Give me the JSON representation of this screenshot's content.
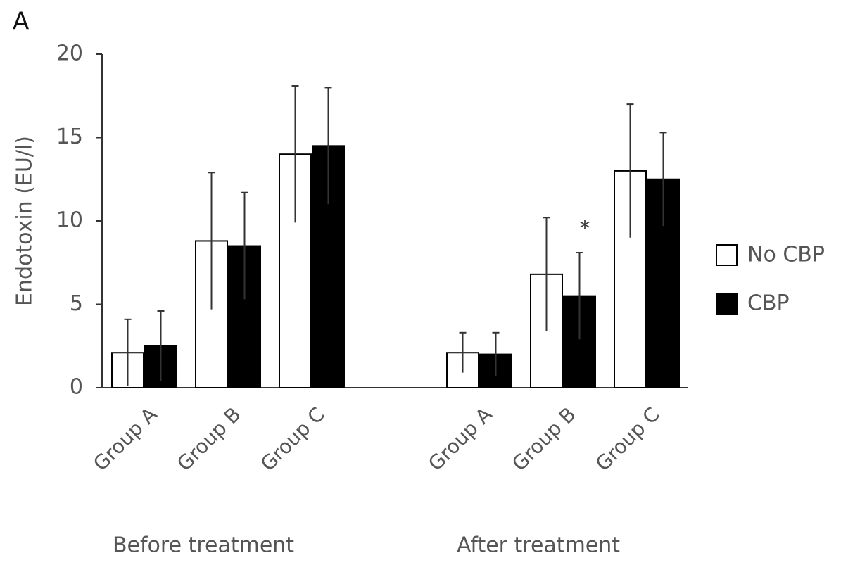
{
  "chart_data": {
    "type": "bar",
    "panel_label": "A",
    "ylabel": "Endotoxin (EU/l)",
    "categories": [
      "Group A",
      "Group B",
      "Group C",
      "Group A",
      "Group B",
      "Group C"
    ],
    "group_labels": [
      "Before treatment",
      "After treatment"
    ],
    "series": [
      {
        "name": "No CBP",
        "color": "#ffffff",
        "values": [
          2.1,
          8.8,
          14.0,
          2.1,
          6.8,
          13.0
        ],
        "errors": [
          2.0,
          4.1,
          4.1,
          1.2,
          3.4,
          4.0
        ]
      },
      {
        "name": "CBP",
        "color": "#000000",
        "values": [
          2.5,
          8.5,
          14.5,
          2.0,
          5.5,
          12.5
        ],
        "errors": [
          2.1,
          3.2,
          3.5,
          1.3,
          2.6,
          2.8
        ]
      }
    ],
    "edgecolor": "#000000",
    "annotations": [
      {
        "text": "*"
      }
    ],
    "ylim": [
      0,
      20
    ],
    "yticks": [
      0,
      5,
      10,
      15,
      20
    ],
    "legend": "right"
  }
}
